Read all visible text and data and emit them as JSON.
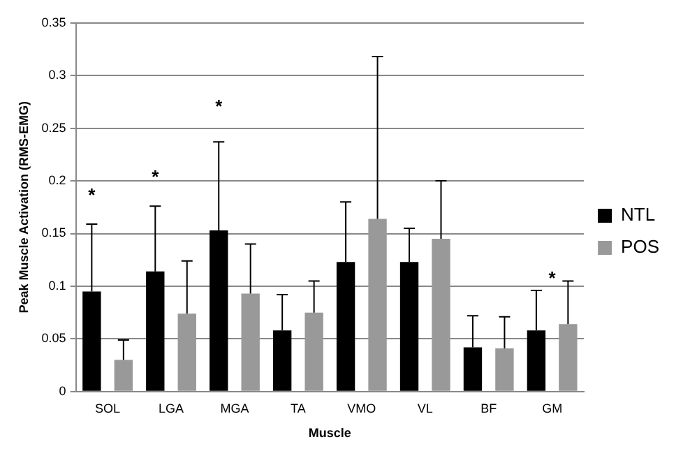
{
  "chart_data": {
    "type": "bar",
    "xlabel": "Muscle",
    "ylabel": "Peak Muscle Activation (RMS-EMG)",
    "categories": [
      "SOL",
      "LGA",
      "MGA",
      "TA",
      "VMO",
      "VL",
      "BF",
      "GM"
    ],
    "series": [
      {
        "name": "NTL",
        "color": "#000000",
        "values": [
          0.095,
          0.114,
          0.153,
          0.058,
          0.123,
          0.123,
          0.042,
          0.058
        ],
        "errors": [
          [
            0.095,
            0.159
          ],
          [
            0.114,
            0.176
          ],
          [
            0.153,
            0.237
          ],
          [
            0.058,
            0.092
          ],
          [
            0.123,
            0.18
          ],
          [
            0.123,
            0.155
          ],
          [
            0.042,
            0.072
          ],
          [
            0.058,
            0.096
          ]
        ]
      },
      {
        "name": "POS",
        "color": "#999999",
        "values": [
          0.03,
          0.074,
          0.093,
          0.075,
          0.164,
          0.145,
          0.041,
          0.064
        ],
        "errors": [
          [
            0.03,
            0.049
          ],
          [
            0.074,
            0.124
          ],
          [
            0.093,
            0.14
          ],
          [
            0.075,
            0.105
          ],
          [
            0.164,
            0.318
          ],
          [
            0.145,
            0.2
          ],
          [
            0.041,
            0.071
          ],
          [
            0.064,
            0.105
          ]
        ]
      }
    ],
    "ylim": [
      0,
      0.35
    ],
    "yticks": [
      0,
      0.05,
      {
        "value": 0.1,
        "label": "0.1"
      },
      0.15,
      {
        "value": 0.2,
        "label": "0.2"
      },
      0.25,
      {
        "value": 0.3,
        "label": "0.3"
      },
      0.35
    ],
    "grid": "y",
    "legend": "right",
    "annotations": [
      "*",
      "*",
      "*",
      "*"
    ]
  }
}
